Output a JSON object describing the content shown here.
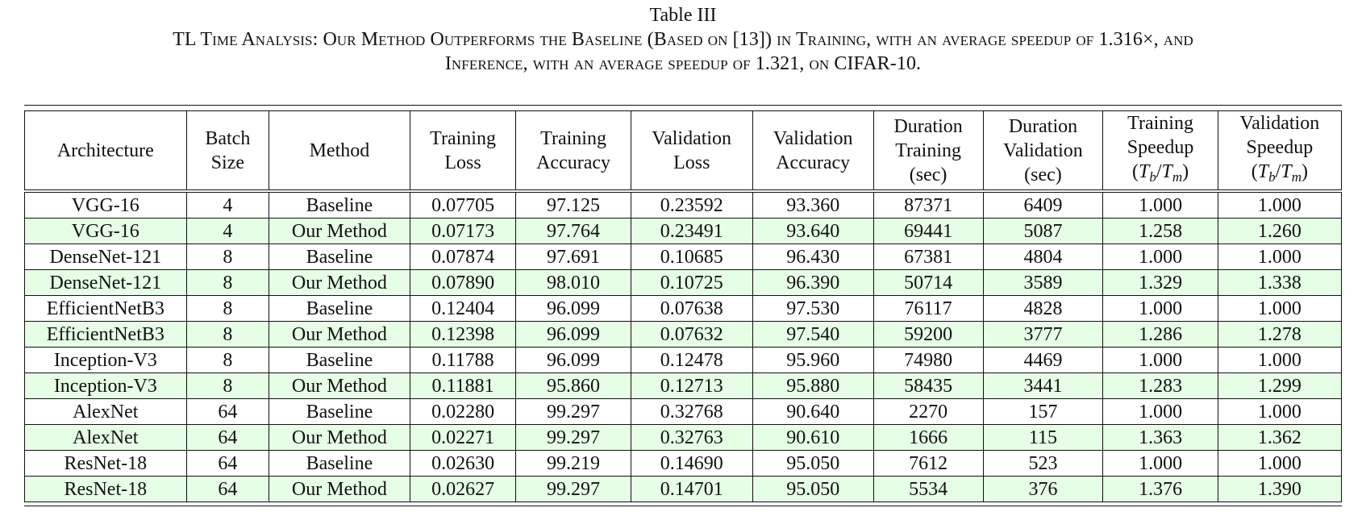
{
  "caption": {
    "label": "Table III",
    "line1": "TL Time Analysis: Our Method Outperforms the Baseline (Based on [13]) in Training, with an average speedup of 1.316×, and",
    "line2": "Inference, with an average speedup of 1.321, on CIFAR-10."
  },
  "table": {
    "headers": [
      {
        "lines": [
          "Architecture"
        ]
      },
      {
        "lines": [
          "Batch",
          "Size"
        ]
      },
      {
        "lines": [
          "Method"
        ]
      },
      {
        "lines": [
          "Training",
          "Loss"
        ]
      },
      {
        "lines": [
          "Training",
          "Accuracy"
        ]
      },
      {
        "lines": [
          "Validation",
          "Loss"
        ]
      },
      {
        "lines": [
          "Validation",
          "Accuracy"
        ]
      },
      {
        "lines": [
          "Duration",
          "Training",
          "(sec)"
        ]
      },
      {
        "lines": [
          "Duration",
          "Validation",
          "(sec)"
        ]
      },
      {
        "lines": [
          "Training",
          "Speedup"
        ],
        "formula": true
      },
      {
        "lines": [
          "Validation",
          "Speedup"
        ],
        "formula": true
      }
    ],
    "formula": {
      "t": "T",
      "b": "b",
      "m": "m"
    },
    "rows": [
      {
        "highlight": false,
        "cells": [
          "VGG-16",
          "4",
          "Baseline",
          "0.07705",
          "97.125",
          "0.23592",
          "93.360",
          "87371",
          "6409",
          "1.000",
          "1.000"
        ]
      },
      {
        "highlight": true,
        "cells": [
          "VGG-16",
          "4",
          "Our Method",
          "0.07173",
          "97.764",
          "0.23491",
          "93.640",
          "69441",
          "5087",
          "1.258",
          "1.260"
        ]
      },
      {
        "highlight": false,
        "cells": [
          "DenseNet-121",
          "8",
          "Baseline",
          "0.07874",
          "97.691",
          "0.10685",
          "96.430",
          "67381",
          "4804",
          "1.000",
          "1.000"
        ]
      },
      {
        "highlight": true,
        "cells": [
          "DenseNet-121",
          "8",
          "Our Method",
          "0.07890",
          "98.010",
          "0.10725",
          "96.390",
          "50714",
          "3589",
          "1.329",
          "1.338"
        ]
      },
      {
        "highlight": false,
        "cells": [
          "EfficientNetB3",
          "8",
          "Baseline",
          "0.12404",
          "96.099",
          "0.07638",
          "97.530",
          "76117",
          "4828",
          "1.000",
          "1.000"
        ]
      },
      {
        "highlight": true,
        "cells": [
          "EfficientNetB3",
          "8",
          "Our Method",
          "0.12398",
          "96.099",
          "0.07632",
          "97.540",
          "59200",
          "3777",
          "1.286",
          "1.278"
        ]
      },
      {
        "highlight": false,
        "cells": [
          "Inception-V3",
          "8",
          "Baseline",
          "0.11788",
          "96.099",
          "0.12478",
          "95.960",
          "74980",
          "4469",
          "1.000",
          "1.000"
        ]
      },
      {
        "highlight": true,
        "cells": [
          "Inception-V3",
          "8",
          "Our Method",
          "0.11881",
          "95.860",
          "0.12713",
          "95.880",
          "58435",
          "3441",
          "1.283",
          "1.299"
        ]
      },
      {
        "highlight": false,
        "cells": [
          "AlexNet",
          "64",
          "Baseline",
          "0.02280",
          "99.297",
          "0.32768",
          "90.640",
          "2270",
          "157",
          "1.000",
          "1.000"
        ]
      },
      {
        "highlight": true,
        "cells": [
          "AlexNet",
          "64",
          "Our Method",
          "0.02271",
          "99.297",
          "0.32763",
          "90.610",
          "1666",
          "115",
          "1.363",
          "1.362"
        ]
      },
      {
        "highlight": false,
        "cells": [
          "ResNet-18",
          "64",
          "Baseline",
          "0.02630",
          "99.219",
          "0.14690",
          "95.050",
          "7612",
          "523",
          "1.000",
          "1.000"
        ]
      },
      {
        "highlight": true,
        "cells": [
          "ResNet-18",
          "64",
          "Our Method",
          "0.02627",
          "99.297",
          "0.14701",
          "95.050",
          "5534",
          "376",
          "1.376",
          "1.390"
        ]
      }
    ],
    "colors": {
      "highlight_row": "#e6fde6",
      "rule": "#111111"
    }
  }
}
